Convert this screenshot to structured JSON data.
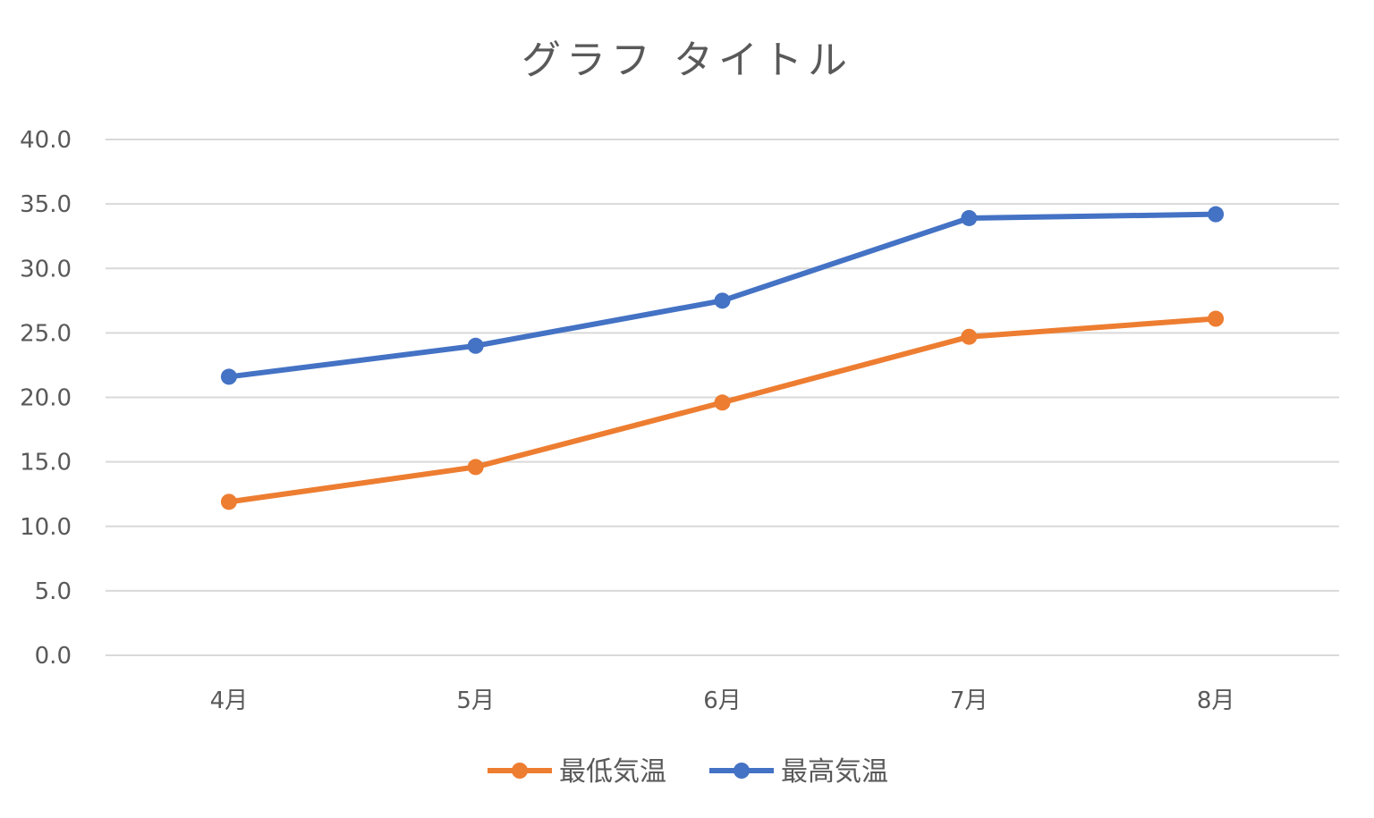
{
  "chart_data": {
    "type": "line",
    "title": "グラフ タイトル",
    "xlabel": "",
    "ylabel": "",
    "categories": [
      "4月",
      "5月",
      "6月",
      "7月",
      "8月"
    ],
    "series": [
      {
        "name": "最低気温",
        "color": "#ED7D31",
        "values": [
          11.9,
          14.6,
          19.6,
          24.7,
          26.1
        ]
      },
      {
        "name": "最高気温",
        "color": "#4472C4",
        "values": [
          21.6,
          24.0,
          27.5,
          33.9,
          34.2
        ]
      }
    ],
    "ylim": [
      0,
      40
    ],
    "yticks": [
      "0.0",
      "5.0",
      "10.0",
      "15.0",
      "20.0",
      "25.0",
      "30.0",
      "35.0",
      "40.0"
    ],
    "grid": true,
    "legend_position": "bottom"
  }
}
